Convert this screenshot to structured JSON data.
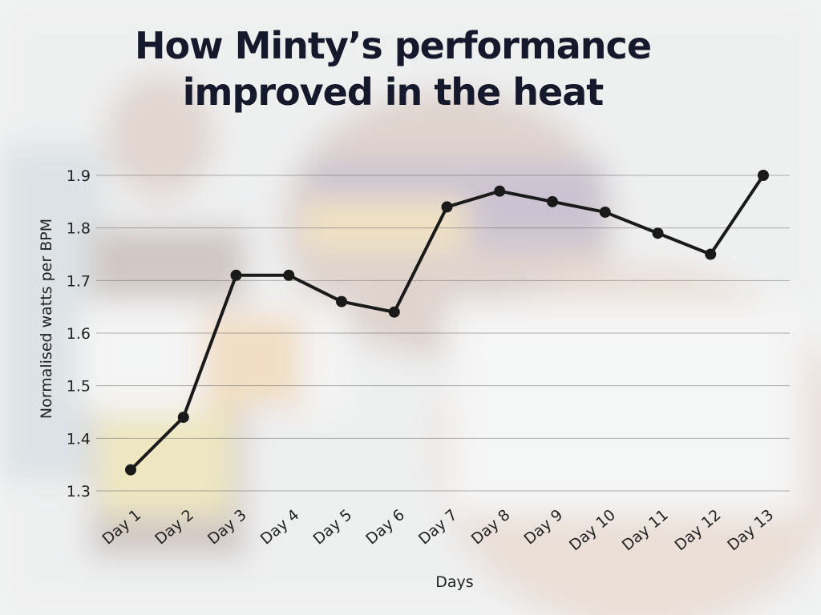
{
  "chart_data": {
    "type": "line",
    "title": "How Minty’s performance improved in the heat",
    "x_label": "Days",
    "y_label": "Normalised watts per BPM",
    "categories": [
      "Day 1",
      "Day 2",
      "Day 3",
      "Day 4",
      "Day 5",
      "Day 6",
      "Day 7",
      "Day 8",
      "Day 9",
      "Day 10",
      "Day 11",
      "Day 12",
      "Day 13"
    ],
    "values": [
      1.34,
      1.44,
      1.71,
      1.71,
      1.66,
      1.64,
      1.84,
      1.87,
      1.85,
      1.83,
      1.79,
      1.75,
      1.9
    ],
    "color": "#1a1a1a",
    "ylim": [
      1.3,
      1.9
    ],
    "yticks": [
      1.3,
      1.4,
      1.5,
      1.6,
      1.7,
      1.8,
      1.9
    ],
    "grid": true
  }
}
